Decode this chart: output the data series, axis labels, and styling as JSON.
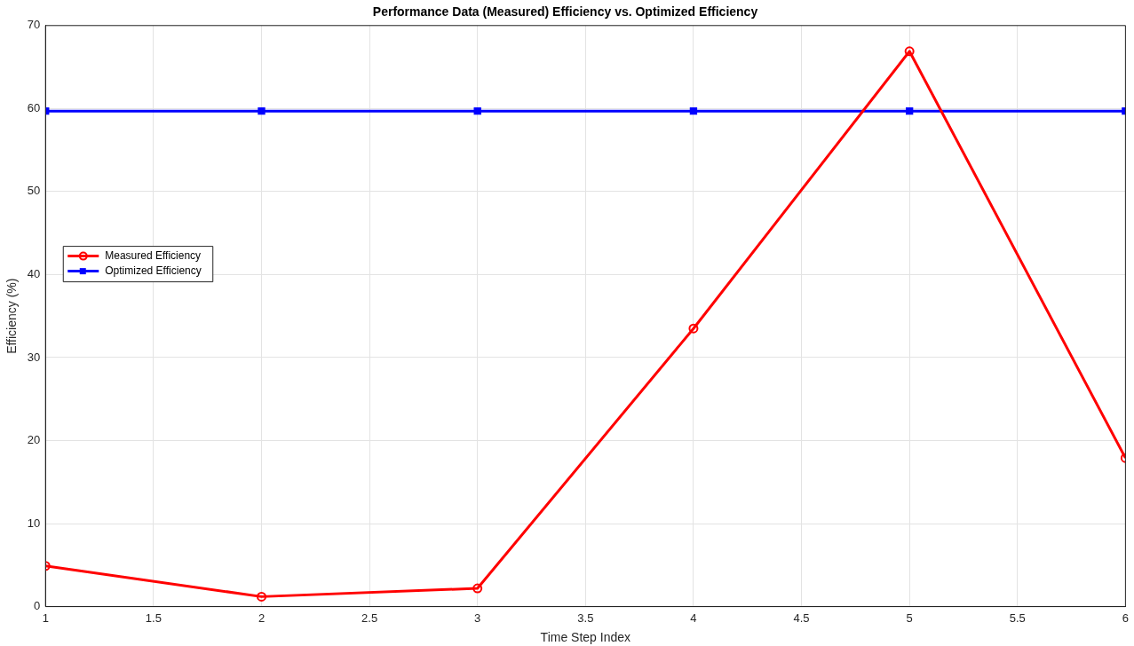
{
  "chart_data": {
    "type": "line",
    "title": "Performance Data (Measured) Efficiency vs. Optimized Efficiency",
    "xlabel": "Time Step Index",
    "ylabel": "Efficiency (%)",
    "x": [
      1,
      2,
      3,
      4,
      5,
      6
    ],
    "series": [
      {
        "name": "Measured Efficiency",
        "color": "#ff0000",
        "marker": "circle",
        "values": [
          4.9,
          1.2,
          2.2,
          33.5,
          66.9,
          17.9
        ]
      },
      {
        "name": "Optimized Efficiency",
        "color": "#0000ff",
        "marker": "square",
        "values": [
          59.7,
          59.7,
          59.7,
          59.7,
          59.7,
          59.7
        ]
      }
    ],
    "xlim": [
      1,
      6
    ],
    "xticks": [
      1,
      1.5,
      2,
      2.5,
      3,
      3.5,
      4,
      4.5,
      5,
      5.5,
      6
    ],
    "ylim": [
      0,
      70
    ],
    "yticks": [
      0,
      10,
      20,
      30,
      40,
      50,
      60,
      70
    ],
    "grid": true,
    "legend": "left",
    "line_style": "solid"
  }
}
